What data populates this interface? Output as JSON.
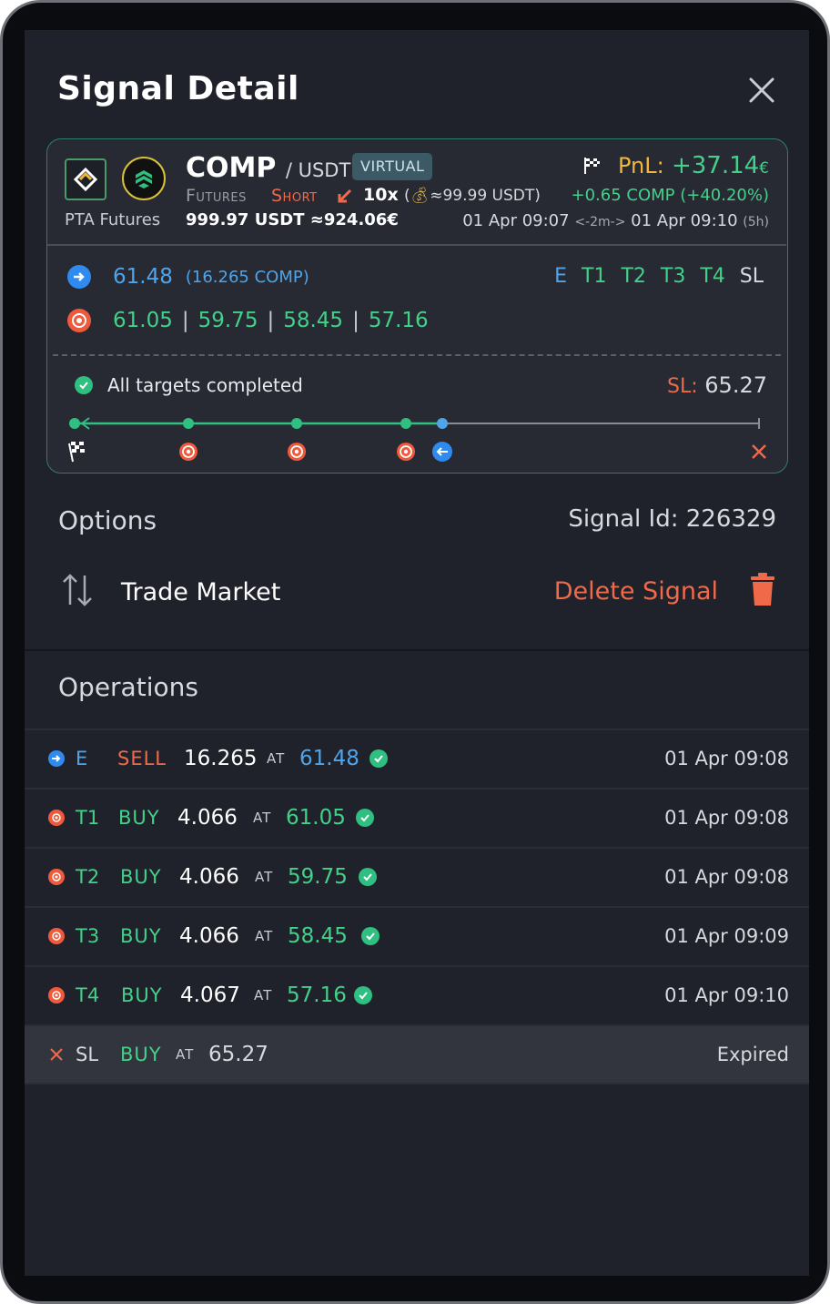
{
  "header": {
    "title": "Signal Detail"
  },
  "signal": {
    "base": "COMP",
    "quote": "/ USDT",
    "badge": "VIRTUAL",
    "market": "Futures",
    "side": "Short",
    "leverage": "10x",
    "margin": "≈99.99 USDT)",
    "margin_open": "(",
    "exchange": "PTA Futures",
    "amount": "999.97 USDT ≈924.06€",
    "pnl_label": "PnL:",
    "pnl_value": "+37.14",
    "pnl_currency": "€",
    "pnl_comp": "+0.65 COMP (+40.20%)",
    "time_start": "01 Apr 09:07",
    "duration": "<-2m->",
    "time_end": "01 Apr 09:10",
    "elapsed": "(5h)",
    "entry_price": "61.48",
    "entry_qty": "(16.265 COMP)",
    "targets": [
      "61.05",
      "59.75",
      "58.45",
      "57.16"
    ],
    "legend": [
      "E",
      "T1",
      "T2",
      "T3",
      "T4",
      "SL"
    ],
    "status": "All targets completed",
    "sl_label": "SL:",
    "sl_value": "65.27",
    "colors": {
      "accent_green": "#43d18a",
      "accent_red": "#f06a4a",
      "accent_blue": "#4fa5ea",
      "pnl_label": "#f2b73a"
    }
  },
  "options": {
    "title": "Options",
    "signal_id": "Signal Id: 226329",
    "trade_market": "Trade Market",
    "delete_signal": "Delete Signal"
  },
  "operations": {
    "title": "Operations",
    "at_label": "AT",
    "rows": [
      {
        "code": "E",
        "side": "SELL",
        "qty": "16.265",
        "price": "61.48",
        "time": "01 Apr 09:08"
      },
      {
        "code": "T1",
        "side": "BUY",
        "qty": "4.066",
        "price": "61.05",
        "time": "01 Apr 09:08"
      },
      {
        "code": "T2",
        "side": "BUY",
        "qty": "4.066",
        "price": "59.75",
        "time": "01 Apr 09:08"
      },
      {
        "code": "T3",
        "side": "BUY",
        "qty": "4.066",
        "price": "58.45",
        "time": "01 Apr 09:09"
      },
      {
        "code": "T4",
        "side": "BUY",
        "qty": "4.067",
        "price": "57.16",
        "time": "01 Apr 09:10"
      },
      {
        "code": "SL",
        "side": "BUY",
        "qty": "",
        "price": "65.27",
        "time": "Expired"
      }
    ]
  }
}
